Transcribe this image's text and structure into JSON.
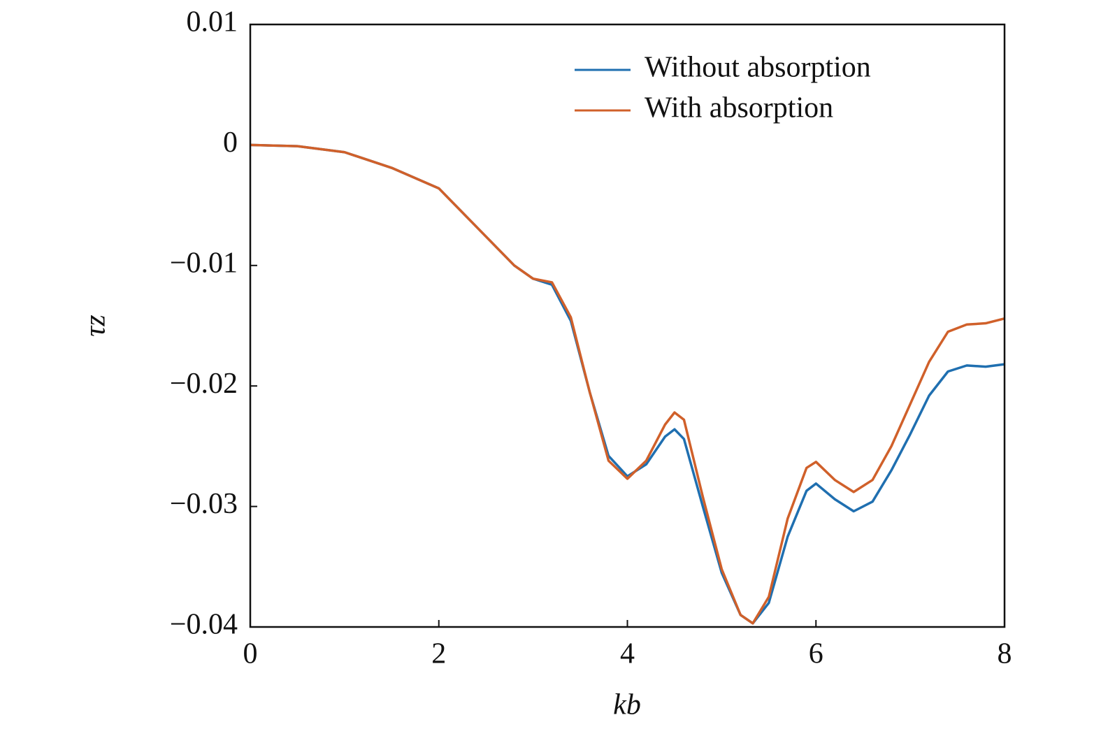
{
  "chart_data": {
    "type": "line",
    "xlabel": "kb",
    "ylabel": "τz",
    "x": [
      0,
      0.5,
      1.0,
      1.5,
      2.0,
      2.5,
      2.8,
      3.0,
      3.2,
      3.4,
      3.6,
      3.8,
      4.0,
      4.2,
      4.4,
      4.5,
      4.6,
      4.8,
      5.0,
      5.2,
      5.33,
      5.5,
      5.7,
      5.9,
      6.0,
      6.2,
      6.4,
      6.6,
      6.8,
      7.0,
      7.2,
      7.4,
      7.6,
      7.8,
      8.0
    ],
    "series": [
      {
        "name": "Without absorption",
        "color": "#1f6fb0",
        "values": [
          0,
          -0.0001,
          -0.0006,
          -0.0019,
          -0.0036,
          -0.0076,
          -0.01,
          -0.0111,
          -0.0116,
          -0.0146,
          -0.0205,
          -0.0258,
          -0.0275,
          -0.0265,
          -0.0242,
          -0.0236,
          -0.0244,
          -0.03,
          -0.0355,
          -0.039,
          -0.0397,
          -0.038,
          -0.0325,
          -0.0287,
          -0.0281,
          -0.0294,
          -0.0304,
          -0.0296,
          -0.027,
          -0.024,
          -0.0208,
          -0.0188,
          -0.0183,
          -0.0184,
          -0.0182
        ]
      },
      {
        "name": "With absorption",
        "color": "#d0602a",
        "values": [
          0,
          -0.0001,
          -0.0006,
          -0.0019,
          -0.0036,
          -0.0076,
          -0.01,
          -0.0111,
          -0.0114,
          -0.0143,
          -0.0205,
          -0.0262,
          -0.0277,
          -0.0262,
          -0.0232,
          -0.0222,
          -0.0228,
          -0.0292,
          -0.0352,
          -0.039,
          -0.0397,
          -0.0375,
          -0.031,
          -0.0268,
          -0.0263,
          -0.0278,
          -0.0288,
          -0.0278,
          -0.025,
          -0.0215,
          -0.018,
          -0.0155,
          -0.0149,
          -0.0148,
          -0.0144
        ]
      }
    ],
    "xlim": [
      0,
      8
    ],
    "xticks": [
      0,
      2,
      4,
      6,
      8
    ],
    "ylim": [
      -0.04,
      0.01
    ],
    "yticks": [
      {
        "value": -0.04,
        "label": "−0.04"
      },
      {
        "value": -0.03,
        "label": "−0.03"
      },
      {
        "value": -0.02,
        "label": "−0.02"
      },
      {
        "value": -0.01,
        "label": "−0.01"
      },
      0,
      0.01
    ],
    "legend": "upper right",
    "grid": false
  }
}
